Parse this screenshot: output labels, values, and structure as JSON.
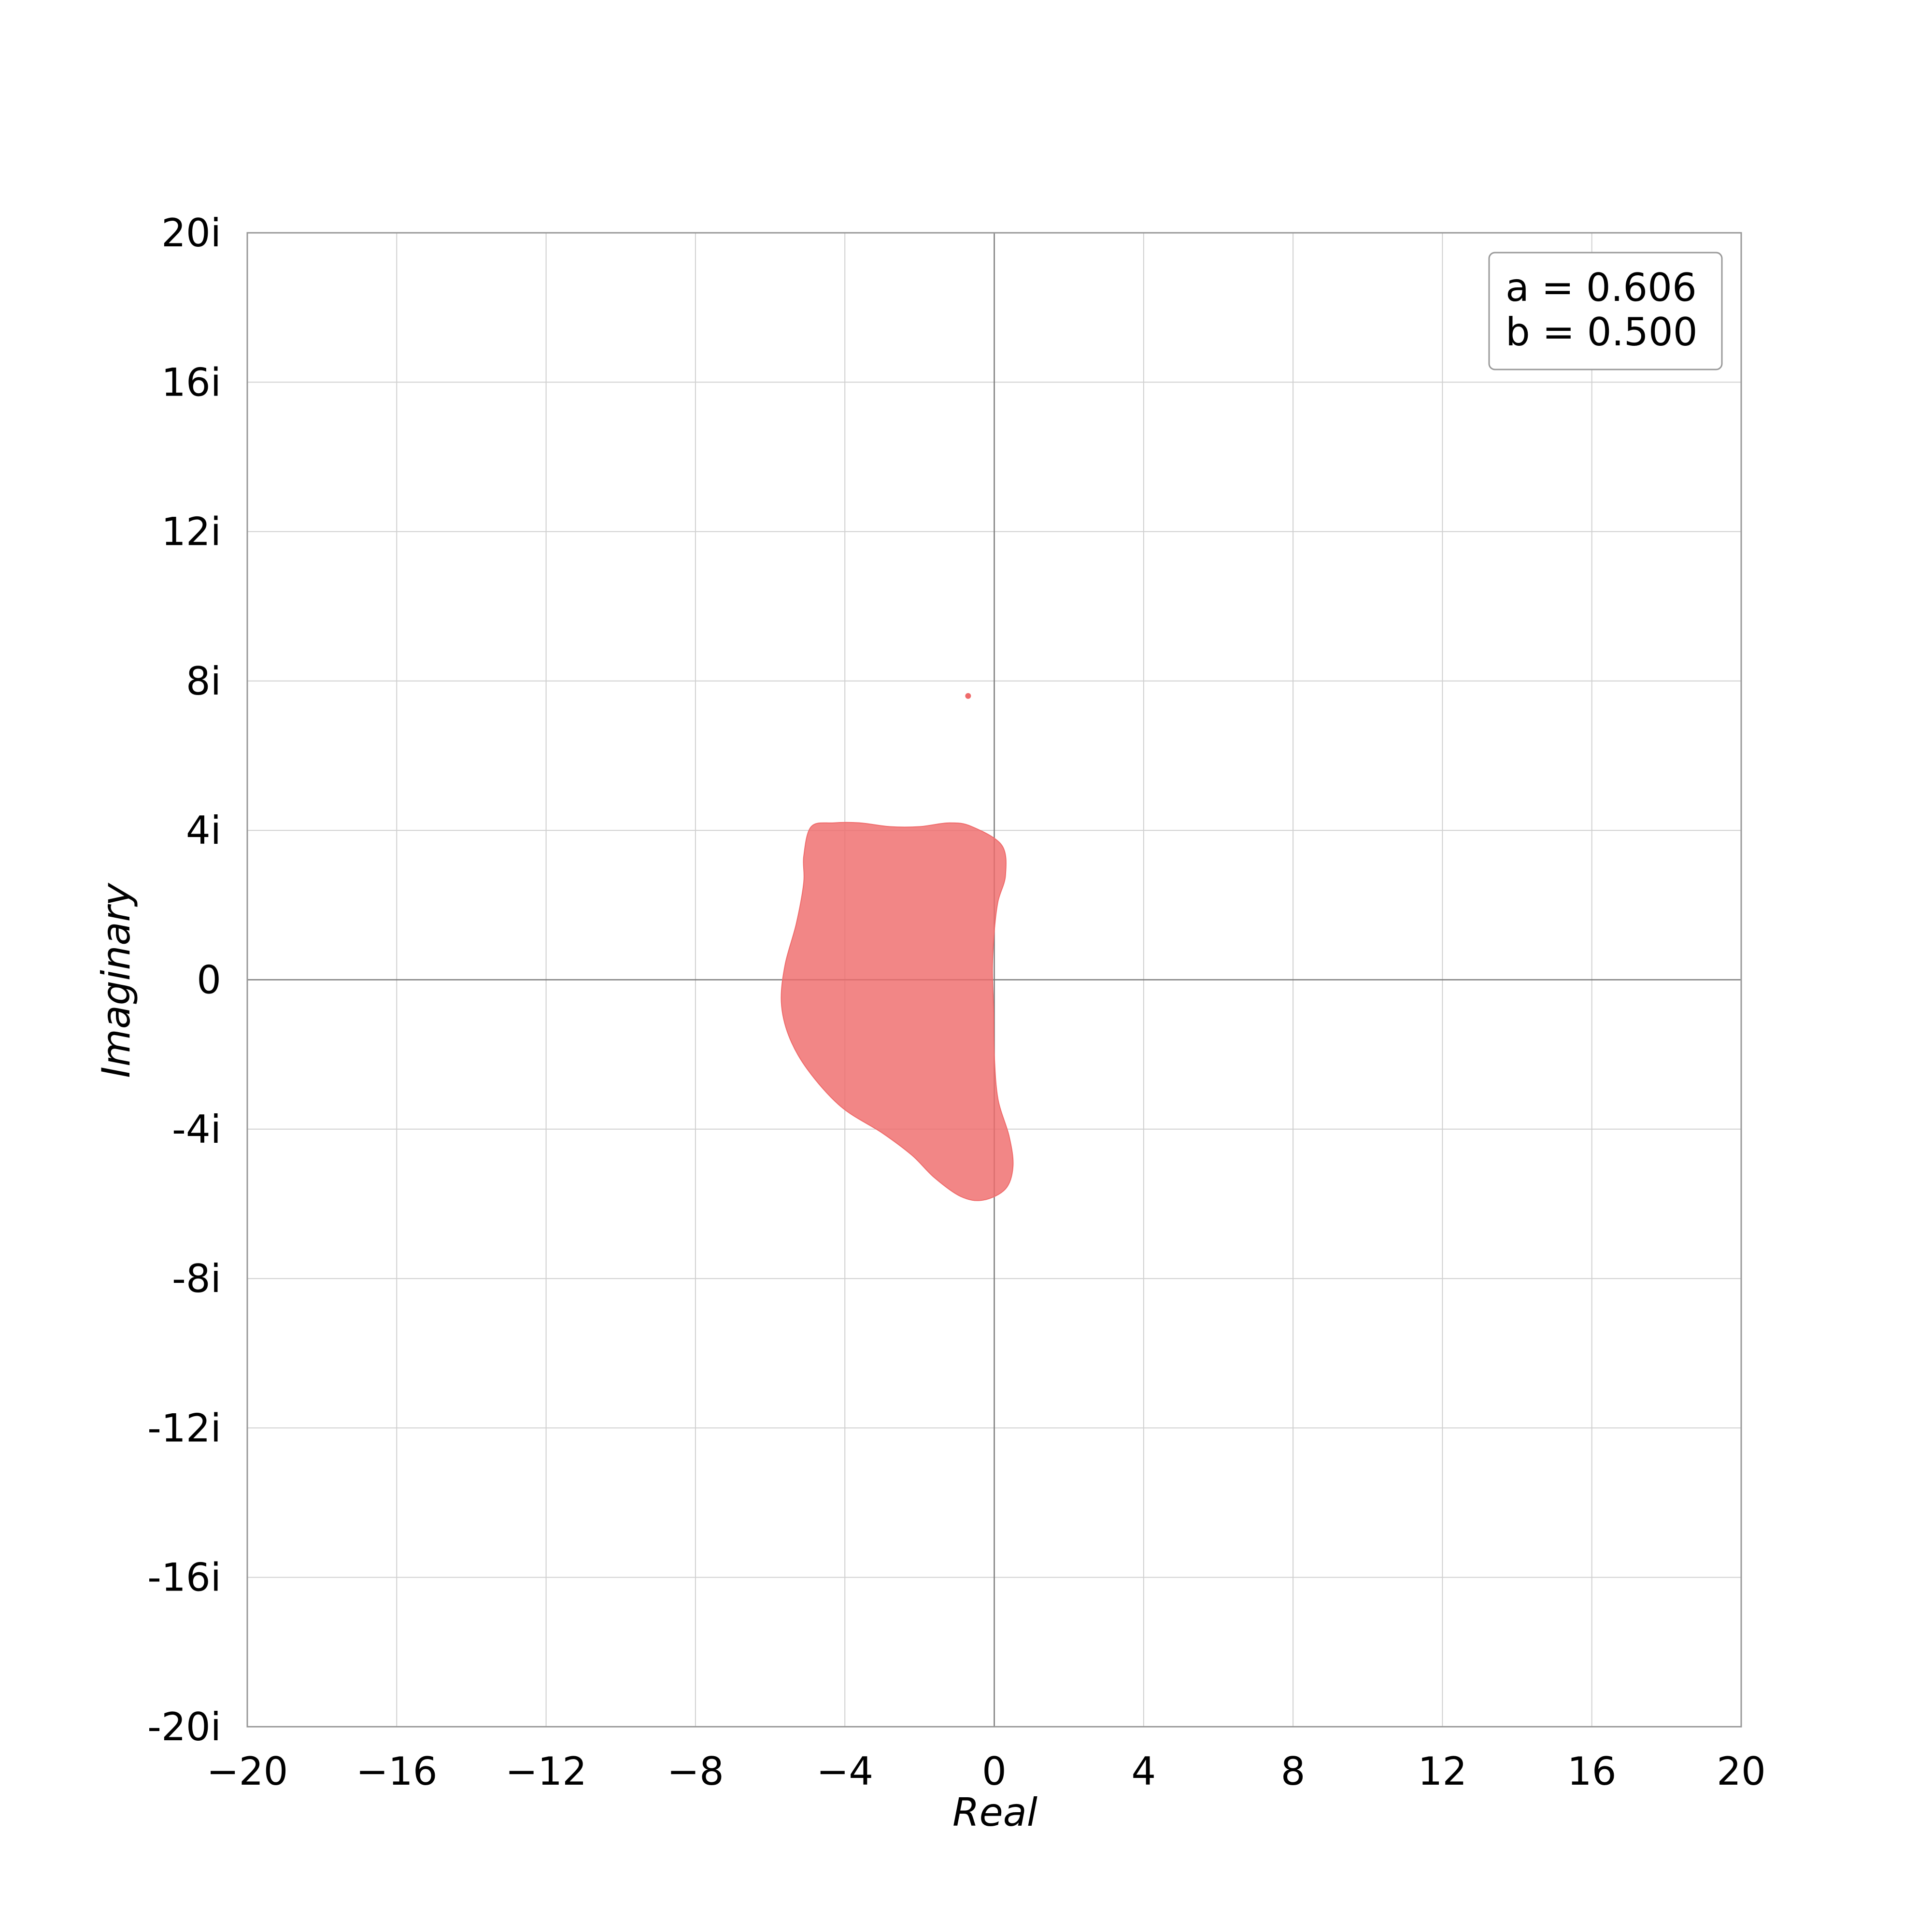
{
  "chart_data": {
    "type": "area",
    "xlabel": "Real",
    "ylabel": "Imaginary",
    "xlim": [
      -20,
      20
    ],
    "ylim": [
      -20,
      20
    ],
    "x_ticks": [
      -20,
      -16,
      -12,
      -8,
      -4,
      0,
      4,
      8,
      12,
      16,
      20
    ],
    "x_tick_labels": [
      "−20",
      "−16",
      "−12",
      "−8",
      "−4",
      "0",
      "4",
      "8",
      "12",
      "16",
      "20"
    ],
    "y_ticks": [
      20,
      16,
      12,
      8,
      4,
      0,
      -4,
      -8,
      -12,
      -16,
      -20
    ],
    "y_tick_labels": [
      "20i",
      "16i",
      "12i",
      "8i",
      "4i",
      "0",
      "-4i",
      "-8i",
      "-12i",
      "-16i",
      "-20i"
    ],
    "grid": true,
    "annotation_box": {
      "placement": "top-right",
      "lines": [
        "a = 0.606",
        "b = 0.500"
      ]
    },
    "fill_color": "#ef6b6b",
    "region_boundary": [
      [
        -4.9,
        4.1
      ],
      [
        -4.3,
        4.2
      ],
      [
        -3.6,
        4.2
      ],
      [
        -2.8,
        4.1
      ],
      [
        -2.0,
        4.1
      ],
      [
        -1.2,
        4.2
      ],
      [
        -0.6,
        4.1
      ],
      [
        0.2,
        3.6
      ],
      [
        0.3,
        2.8
      ],
      [
        0.1,
        2.1
      ],
      [
        0.0,
        1.3
      ],
      [
        -0.05,
        0.3
      ],
      [
        -0.02,
        -0.8
      ],
      [
        0.0,
        -2.0
      ],
      [
        0.1,
        -3.2
      ],
      [
        0.4,
        -4.2
      ],
      [
        0.5,
        -5.0
      ],
      [
        0.3,
        -5.6
      ],
      [
        -0.3,
        -5.9
      ],
      [
        -0.9,
        -5.8
      ],
      [
        -1.6,
        -5.3
      ],
      [
        -2.2,
        -4.7
      ],
      [
        -3.0,
        -4.1
      ],
      [
        -4.1,
        -3.4
      ],
      [
        -5.0,
        -2.4
      ],
      [
        -5.5,
        -1.5
      ],
      [
        -5.7,
        -0.6
      ],
      [
        -5.6,
        0.4
      ],
      [
        -5.3,
        1.5
      ],
      [
        -5.1,
        2.6
      ],
      [
        -5.1,
        3.3
      ]
    ],
    "isolated_points": [
      [
        -0.7,
        7.6
      ]
    ]
  }
}
